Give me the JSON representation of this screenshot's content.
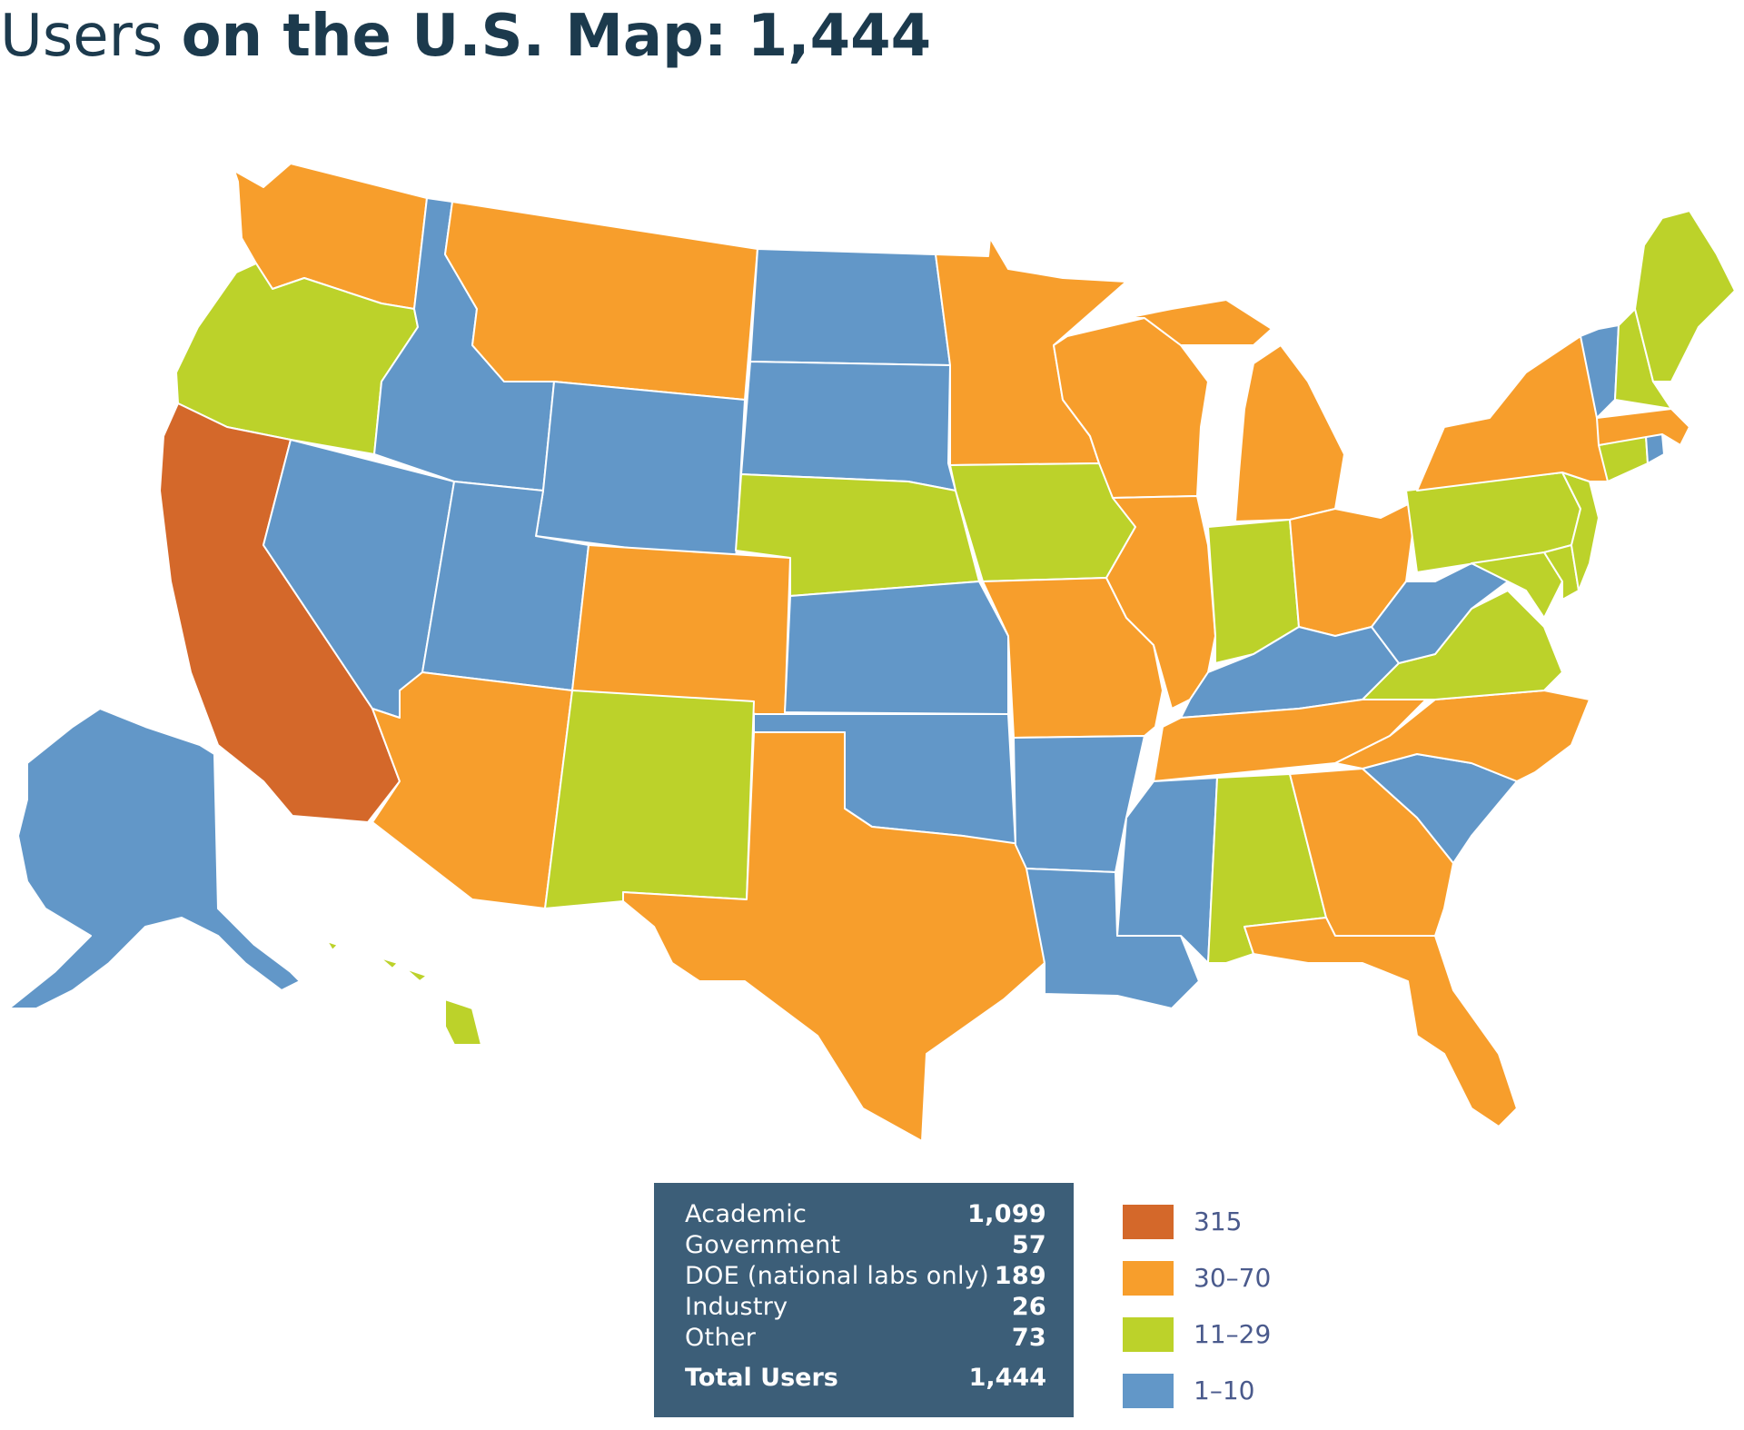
{
  "title": {
    "prefix": "Users",
    "suffix": "on the U.S. Map: 1,444"
  },
  "colors": {
    "c315": "#d4682a",
    "c30_70": "#f79e2c",
    "c11_29": "#bcd22a",
    "c1_10": "#6297c8"
  },
  "stats": {
    "rows": [
      {
        "label": "Academic",
        "value": "1,099"
      },
      {
        "label": "Government",
        "value": "57"
      },
      {
        "label": "DOE (national labs only)",
        "value": "189"
      },
      {
        "label": "Industry",
        "value": "26"
      },
      {
        "label": "Other",
        "value": "73"
      }
    ],
    "total_label": "Total Users",
    "total_value": "1,444"
  },
  "legend": [
    {
      "label": "315",
      "color": "#d4682a"
    },
    {
      "label": "30–70",
      "color": "#f79e2c"
    },
    {
      "label": "11–29",
      "color": "#bcd22a"
    },
    {
      "label": "1–10",
      "color": "#6297c8"
    }
  ]
}
